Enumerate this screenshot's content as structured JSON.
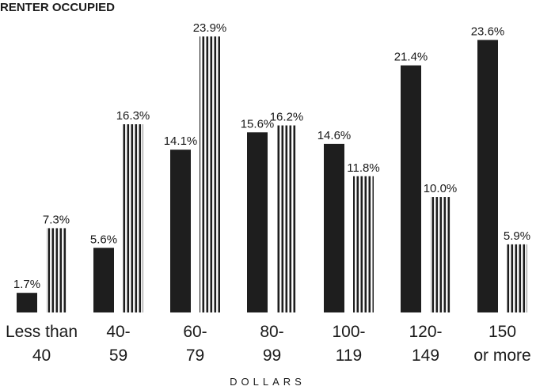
{
  "chart_data": {
    "type": "bar",
    "title": "RENTER OCCUPIED",
    "xlabel": "DOLLARS",
    "ylabel": "",
    "ylim": [
      0,
      24.8
    ],
    "grid": false,
    "categories": [
      [
        "Less than",
        "40"
      ],
      [
        "40-",
        "59"
      ],
      [
        "60-",
        "79"
      ],
      [
        "80-",
        "99"
      ],
      [
        "100-",
        "119"
      ],
      [
        "120-",
        "149"
      ],
      [
        "150",
        "or more"
      ]
    ],
    "series": [
      {
        "style": "solid",
        "color": "#1e1e1e",
        "values": [
          1.7,
          5.6,
          14.1,
          15.6,
          14.6,
          21.4,
          23.6
        ],
        "labels": [
          "1.7%",
          "5.6%",
          "14.1%",
          "15.6%",
          "14.6%",
          "21.4%",
          "23.6%"
        ]
      },
      {
        "style": "vertical-hatch",
        "color": "#1e1e1e",
        "values": [
          7.3,
          16.3,
          23.9,
          16.2,
          11.8,
          10.0,
          5.9
        ],
        "labels": [
          "7.3%",
          "16.3%",
          "23.9%",
          "16.2%",
          "11.8%",
          "10.0%",
          "5.9%"
        ]
      }
    ]
  }
}
